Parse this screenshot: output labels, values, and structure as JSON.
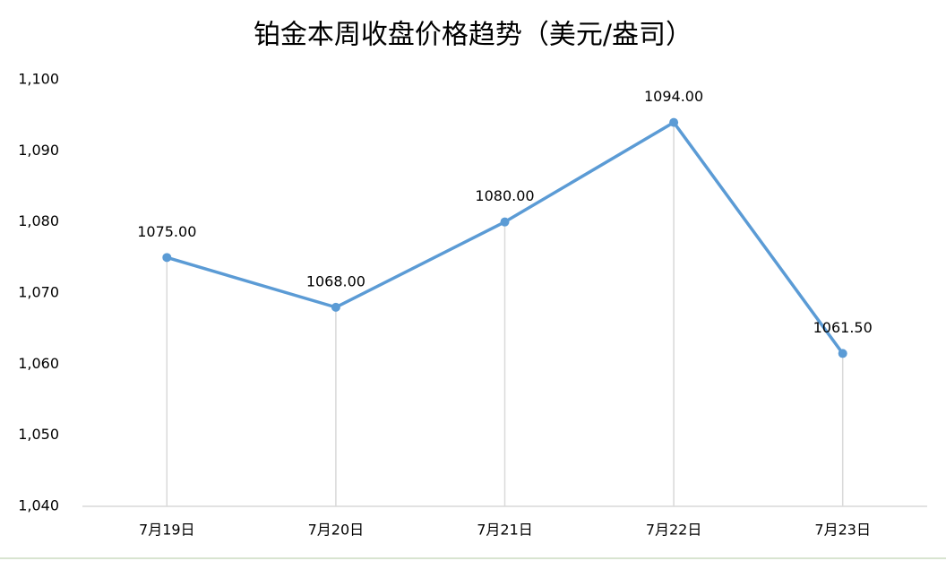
{
  "chart_data": {
    "type": "line",
    "title": "铂金本周收盘价格趋势（美元/盎司）",
    "categories": [
      "7月19日",
      "7月20日",
      "7月21日",
      "7月22日",
      "7月23日"
    ],
    "values": [
      1075,
      1068,
      1080,
      1094,
      1061.5
    ],
    "value_labels": [
      "1075.00",
      "1068.00",
      "1080.00",
      "1094.00",
      "1061.50"
    ],
    "color": "#5b9bd5",
    "ylim": [
      1040,
      1100
    ],
    "yticks": [
      {
        "value": 1040,
        "label": "1,040"
      },
      {
        "value": 1050,
        "label": "1,050"
      },
      {
        "value": 1060,
        "label": "1,060"
      },
      {
        "value": 1070,
        "label": "1,070"
      },
      {
        "value": 1080,
        "label": "1,080"
      },
      {
        "value": 1090,
        "label": "1,090"
      },
      {
        "value": 1100,
        "label": "1,100"
      }
    ],
    "drop_lines": true
  }
}
